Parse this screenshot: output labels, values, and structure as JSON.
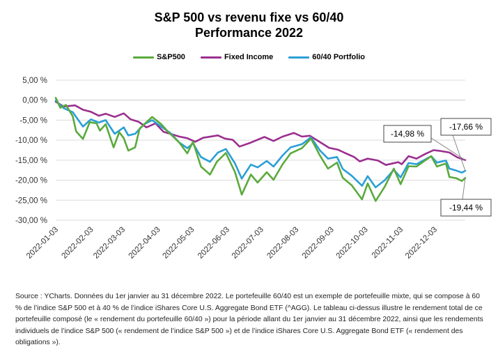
{
  "chart_data": {
    "type": "line",
    "title_line1": "S&P 500 vs revenu fixe vs 60/40",
    "title_line2": "Performance 2022",
    "ylim": [
      -30,
      5
    ],
    "y_ticks": [
      "5,00 %",
      "0,00 %",
      "-5,00 %",
      "-10,00 %",
      "-15,00 %",
      "-20,00 %",
      "-25,00 %",
      "-30,00 %"
    ],
    "y_tick_values": [
      5,
      0,
      -5,
      -10,
      -15,
      -20,
      -25,
      -30
    ],
    "x_ticks": [
      "2022-01-03",
      "2022-02-03",
      "2022-03-03",
      "2022-04-03",
      "2022-05-03",
      "2022-06-03",
      "2022-07-03",
      "2022-08-03",
      "2022-09-03",
      "2022-10-03",
      "2022-11-03",
      "2022-12-03"
    ],
    "grid": "horizontal",
    "legend_position": "top",
    "x_start": "2022-01-03",
    "x_end": "2022-12-30",
    "series": [
      {
        "name": "S&P500",
        "color": "#5aaa3c",
        "points": [
          [
            "2022-01-03",
            0.6
          ],
          [
            "2022-01-07",
            -1.9
          ],
          [
            "2022-01-12",
            -1.2
          ],
          [
            "2022-01-18",
            -4.0
          ],
          [
            "2022-01-21",
            -7.8
          ],
          [
            "2022-01-27",
            -9.7
          ],
          [
            "2022-02-02",
            -5.5
          ],
          [
            "2022-02-08",
            -5.8
          ],
          [
            "2022-02-11",
            -7.6
          ],
          [
            "2022-02-16",
            -6.0
          ],
          [
            "2022-02-23",
            -11.8
          ],
          [
            "2022-02-28",
            -8.0
          ],
          [
            "2022-03-04",
            -9.5
          ],
          [
            "2022-03-08",
            -12.6
          ],
          [
            "2022-03-14",
            -11.8
          ],
          [
            "2022-03-18",
            -7.1
          ],
          [
            "2022-03-29",
            -4.2
          ],
          [
            "2022-04-06",
            -6.0
          ],
          [
            "2022-04-12",
            -7.9
          ],
          [
            "2022-04-22",
            -10.6
          ],
          [
            "2022-04-29",
            -13.3
          ],
          [
            "2022-05-04",
            -10.4
          ],
          [
            "2022-05-11",
            -16.6
          ],
          [
            "2022-05-19",
            -18.6
          ],
          [
            "2022-05-25",
            -15.4
          ],
          [
            "2022-06-02",
            -13.2
          ],
          [
            "2022-06-10",
            -18.0
          ],
          [
            "2022-06-16",
            -23.6
          ],
          [
            "2022-06-24",
            -18.6
          ],
          [
            "2022-06-30",
            -20.6
          ],
          [
            "2022-07-08",
            -18.0
          ],
          [
            "2022-07-14",
            -19.9
          ],
          [
            "2022-07-22",
            -16.0
          ],
          [
            "2022-07-29",
            -13.3
          ],
          [
            "2022-08-08",
            -12.0
          ],
          [
            "2022-08-16",
            -9.6
          ],
          [
            "2022-08-24",
            -13.9
          ],
          [
            "2022-08-31",
            -17.1
          ],
          [
            "2022-09-08",
            -15.6
          ],
          [
            "2022-09-13",
            -19.4
          ],
          [
            "2022-09-21",
            -21.3
          ],
          [
            "2022-09-30",
            -24.8
          ],
          [
            "2022-10-05",
            -20.8
          ],
          [
            "2022-10-12",
            -25.2
          ],
          [
            "2022-10-20",
            -21.6
          ],
          [
            "2022-10-28",
            -17.1
          ],
          [
            "2022-11-03",
            -21.0
          ],
          [
            "2022-11-10",
            -16.5
          ],
          [
            "2022-11-17",
            -16.6
          ],
          [
            "2022-11-30",
            -14.0
          ],
          [
            "2022-12-05",
            -16.6
          ],
          [
            "2022-12-13",
            -15.8
          ],
          [
            "2022-12-16",
            -19.2
          ],
          [
            "2022-12-22",
            -19.5
          ],
          [
            "2022-12-27",
            -20.2
          ],
          [
            "2022-12-30",
            -19.44
          ]
        ]
      },
      {
        "name": "Fixed Income",
        "color": "#9b2f8f",
        "points": [
          [
            "2022-01-03",
            -0.4
          ],
          [
            "2022-01-10",
            -1.6
          ],
          [
            "2022-01-20",
            -1.3
          ],
          [
            "2022-01-27",
            -2.4
          ],
          [
            "2022-02-03",
            -2.9
          ],
          [
            "2022-02-10",
            -3.9
          ],
          [
            "2022-02-16",
            -3.4
          ],
          [
            "2022-02-24",
            -4.2
          ],
          [
            "2022-03-04",
            -3.3
          ],
          [
            "2022-03-10",
            -4.8
          ],
          [
            "2022-03-17",
            -5.4
          ],
          [
            "2022-03-24",
            -6.8
          ],
          [
            "2022-04-01",
            -5.8
          ],
          [
            "2022-04-08",
            -7.9
          ],
          [
            "2022-04-14",
            -8.4
          ],
          [
            "2022-04-22",
            -9.1
          ],
          [
            "2022-04-29",
            -9.5
          ],
          [
            "2022-05-06",
            -10.4
          ],
          [
            "2022-05-13",
            -9.4
          ],
          [
            "2022-05-26",
            -8.8
          ],
          [
            "2022-06-01",
            -9.6
          ],
          [
            "2022-06-08",
            -9.9
          ],
          [
            "2022-06-14",
            -11.6
          ],
          [
            "2022-06-24",
            -10.6
          ],
          [
            "2022-07-06",
            -9.2
          ],
          [
            "2022-07-14",
            -10.2
          ],
          [
            "2022-07-22",
            -9.1
          ],
          [
            "2022-08-01",
            -8.2
          ],
          [
            "2022-08-08",
            -9.1
          ],
          [
            "2022-08-15",
            -8.9
          ],
          [
            "2022-08-24",
            -10.5
          ],
          [
            "2022-09-01",
            -11.9
          ],
          [
            "2022-09-09",
            -12.4
          ],
          [
            "2022-09-15",
            -13.2
          ],
          [
            "2022-09-23",
            -14.2
          ],
          [
            "2022-09-28",
            -15.3
          ],
          [
            "2022-10-05",
            -14.6
          ],
          [
            "2022-10-14",
            -15.1
          ],
          [
            "2022-10-21",
            -16.2
          ],
          [
            "2022-11-01",
            -15.5
          ],
          [
            "2022-11-04",
            -16.0
          ],
          [
            "2022-11-10",
            -14.0
          ],
          [
            "2022-11-17",
            -14.6
          ],
          [
            "2022-11-25",
            -13.4
          ],
          [
            "2022-12-02",
            -12.5
          ],
          [
            "2022-12-08",
            -12.7
          ],
          [
            "2022-12-16",
            -13.1
          ],
          [
            "2022-12-23",
            -14.3
          ],
          [
            "2022-12-30",
            -14.98
          ]
        ]
      },
      {
        "name": "60/40 Portfolio",
        "color": "#2a9fd6",
        "points": [
          [
            "2022-01-03",
            -0.1
          ],
          [
            "2022-01-10",
            -2.0
          ],
          [
            "2022-01-18",
            -3.0
          ],
          [
            "2022-01-27",
            -6.6
          ],
          [
            "2022-02-03",
            -4.8
          ],
          [
            "2022-02-10",
            -5.6
          ],
          [
            "2022-02-16",
            -5.0
          ],
          [
            "2022-02-24",
            -8.4
          ],
          [
            "2022-03-04",
            -6.8
          ],
          [
            "2022-03-08",
            -8.8
          ],
          [
            "2022-03-14",
            -8.4
          ],
          [
            "2022-03-22",
            -6.0
          ],
          [
            "2022-03-29",
            -5.0
          ],
          [
            "2022-04-08",
            -7.0
          ],
          [
            "2022-04-14",
            -8.2
          ],
          [
            "2022-04-22",
            -10.6
          ],
          [
            "2022-04-29",
            -12.0
          ],
          [
            "2022-05-04",
            -10.8
          ],
          [
            "2022-05-11",
            -14.2
          ],
          [
            "2022-05-19",
            -15.4
          ],
          [
            "2022-05-26",
            -13.1
          ],
          [
            "2022-06-02",
            -12.2
          ],
          [
            "2022-06-10",
            -15.8
          ],
          [
            "2022-06-16",
            -19.6
          ],
          [
            "2022-06-24",
            -16.1
          ],
          [
            "2022-06-30",
            -16.8
          ],
          [
            "2022-07-08",
            -15.2
          ],
          [
            "2022-07-14",
            -16.6
          ],
          [
            "2022-07-22",
            -13.8
          ],
          [
            "2022-07-29",
            -11.8
          ],
          [
            "2022-08-08",
            -11.0
          ],
          [
            "2022-08-16",
            -9.3
          ],
          [
            "2022-08-24",
            -12.6
          ],
          [
            "2022-08-31",
            -14.6
          ],
          [
            "2022-09-08",
            -14.2
          ],
          [
            "2022-09-13",
            -17.2
          ],
          [
            "2022-09-21",
            -18.9
          ],
          [
            "2022-09-30",
            -21.4
          ],
          [
            "2022-10-05",
            -19.0
          ],
          [
            "2022-10-12",
            -21.8
          ],
          [
            "2022-10-20",
            -20.0
          ],
          [
            "2022-10-28",
            -17.4
          ],
          [
            "2022-11-03",
            -19.3
          ],
          [
            "2022-11-10",
            -15.7
          ],
          [
            "2022-11-17",
            -16.0
          ],
          [
            "2022-11-30",
            -14.0
          ],
          [
            "2022-12-05",
            -15.6
          ],
          [
            "2022-12-13",
            -15.1
          ],
          [
            "2022-12-16",
            -17.1
          ],
          [
            "2022-12-22",
            -17.6
          ],
          [
            "2022-12-27",
            -18.1
          ],
          [
            "2022-12-30",
            -17.66
          ]
        ]
      }
    ],
    "annotations": [
      {
        "text": "-14,98 %",
        "series": "Fixed Income"
      },
      {
        "text": "-17,66 %",
        "series": "60/40 Portfolio"
      },
      {
        "text": "-19,44 %",
        "series": "S&P500"
      }
    ]
  },
  "source_text": "Source : YCharts. Données du 1er janvier au 31 décembre 2022. Le portefeuille 60/40 est un exemple de portefeuille mixte, qui se compose à 60 % de l’indice S&P 500 et à 40 % de l’indice iShares Core U.S. Aggregate Bond ETF (^AGG). Le tableau ci-dessus illustre le rendement total de ce portefeuille composé (le « rendement du portefeuille 60/40 ») pour la période allant du 1er janvier au 31 décembre 2022, ainsi que les rendements individuels de l’indice S&P 500 (« rendement de l’indice S&P 500 ») et de l’indice iShares Core U.S. Aggregate Bond ETF (« rendement des obligations »)."
}
